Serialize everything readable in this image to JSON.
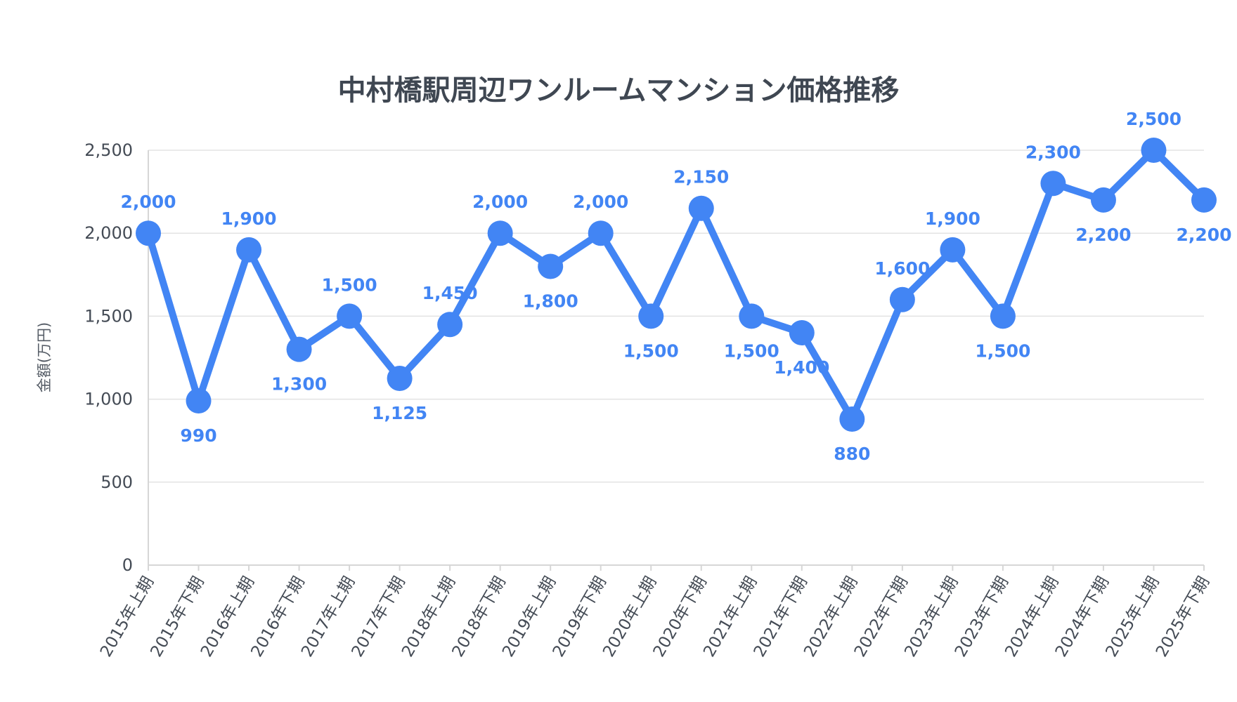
{
  "chart_data": {
    "type": "line",
    "title": "中村橋駅周辺ワンルームマンション価格推移",
    "xlabel": "",
    "ylabel": "金額(万円)",
    "ylim": [
      0,
      2500
    ],
    "yticks": [
      0,
      500,
      1000,
      1500,
      2000,
      2500
    ],
    "ytick_labels": [
      "0",
      "500",
      "1,000",
      "1,500",
      "2,000",
      "2,500"
    ],
    "grid": true,
    "color": "#4285f4",
    "categories": [
      "2015年上期",
      "2015年下期",
      "2016年上期",
      "2016年下期",
      "2017年上期",
      "2017年下期",
      "2018年上期",
      "2018年下期",
      "2019年上期",
      "2019年下期",
      "2020年上期",
      "2020年下期",
      "2021年上期",
      "2021年下期",
      "2022年上期",
      "2022年下期",
      "2023年上期",
      "2023年下期",
      "2024年上期",
      "2024年下期",
      "2025年上期",
      "2025年下期"
    ],
    "series": [
      {
        "values": [
          2000,
          990,
          1900,
          1300,
          1500,
          1125,
          1450,
          2000,
          1800,
          2000,
          1500,
          2150,
          1500,
          1400,
          880,
          1600,
          1900,
          1500,
          2300,
          2200,
          2500,
          2200
        ],
        "labels": [
          "2,000",
          "990",
          "1,900",
          "1,300",
          "1,500",
          "1,125",
          "1,450",
          "2,000",
          "1,800",
          "2,000",
          "1,500",
          "2,150",
          "1,500",
          "1,400",
          "880",
          "1,600",
          "1,900",
          "1,500",
          "2,300",
          "2,200",
          "2,500",
          "2,200"
        ],
        "label_positions": [
          "above",
          "below",
          "above",
          "below",
          "above",
          "below",
          "above",
          "above",
          "below",
          "above",
          "below",
          "above",
          "below",
          "below",
          "below",
          "above",
          "above",
          "below",
          "above",
          "below",
          "above",
          "below"
        ]
      }
    ]
  }
}
